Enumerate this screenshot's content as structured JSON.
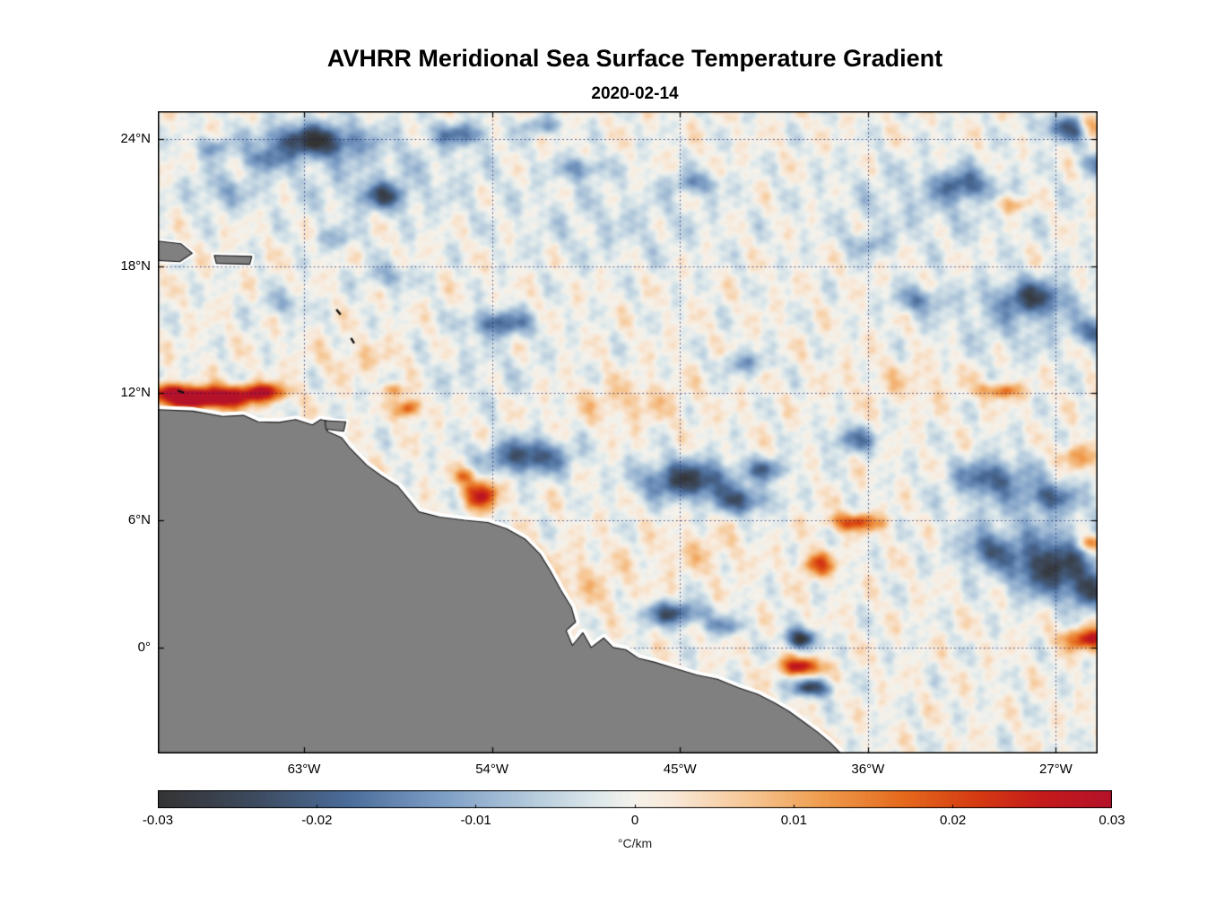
{
  "chart_data": {
    "type": "heatmap",
    "title": "AVHRR Meridional Sea Surface Temperature Gradient",
    "subtitle": "2020-02-14",
    "units": "°C/km",
    "lon_range": [
      -70,
      -25
    ],
    "lat_range": [
      -5,
      25.3
    ],
    "value_range": [
      -0.03,
      0.03
    ],
    "grid": "dotted",
    "legend_position": "bottom-colorbar",
    "xticks": [
      {
        "lon": -63,
        "label": "63°W"
      },
      {
        "lon": -54,
        "label": "54°W"
      },
      {
        "lon": -45,
        "label": "45°W"
      },
      {
        "lon": -36,
        "label": "36°W"
      },
      {
        "lon": -27,
        "label": "27°W"
      }
    ],
    "yticks": [
      {
        "lat": 24,
        "label": "24°N"
      },
      {
        "lat": 18,
        "label": "18°N"
      },
      {
        "lat": 12,
        "label": "12°N"
      },
      {
        "lat": 6,
        "label": "6°N"
      },
      {
        "lat": 0,
        "label": "0°"
      }
    ],
    "colorbar_ticks": [
      "-0.03",
      "-0.02",
      "-0.01",
      "0",
      "0.01",
      "0.02",
      "0.03"
    ],
    "colormap": [
      [
        0.0,
        "#343434"
      ],
      [
        0.1,
        "#3d4a5e"
      ],
      [
        0.2,
        "#4b6d9b"
      ],
      [
        0.3,
        "#7e9fc6"
      ],
      [
        0.4,
        "#b9cede"
      ],
      [
        0.46,
        "#dde8eb"
      ],
      [
        0.5,
        "#f5f3ec"
      ],
      [
        0.54,
        "#f8e8d8"
      ],
      [
        0.62,
        "#f6c693"
      ],
      [
        0.7,
        "#ef9a4b"
      ],
      [
        0.78,
        "#e56a1d"
      ],
      [
        0.86,
        "#d53a12"
      ],
      [
        0.93,
        "#c41a1c"
      ],
      [
        1.0,
        "#b5122a"
      ]
    ],
    "feature_format": "[lon_deg, lat_deg, sigma_lon_deg, sigma_lat_deg, amplitude_degC_per_km]",
    "features": [
      [
        -60,
        22.5,
        6,
        2.2,
        -0.005
      ],
      [
        -48,
        20,
        5,
        2,
        -0.004
      ],
      [
        -33,
        21,
        5,
        2,
        -0.005
      ],
      [
        -29,
        15.5,
        3.5,
        1.8,
        -0.006
      ],
      [
        -28.5,
        6.5,
        3.5,
        2.5,
        -0.006
      ],
      [
        -55,
        13,
        4,
        1.5,
        -0.003
      ],
      [
        -62.6,
        23.9,
        2.2,
        0.75,
        -0.026
      ],
      [
        -64.9,
        23.0,
        1.0,
        0.5,
        -0.012
      ],
      [
        -67.3,
        23.6,
        0.8,
        0.45,
        -0.012
      ],
      [
        -55.5,
        24.2,
        1.2,
        0.5,
        -0.016
      ],
      [
        -51.6,
        24.6,
        0.9,
        0.4,
        -0.012
      ],
      [
        -59.2,
        21.3,
        1.1,
        0.6,
        -0.019
      ],
      [
        -49.7,
        22.6,
        1.1,
        0.5,
        -0.013
      ],
      [
        -44.3,
        21.9,
        1.2,
        0.5,
        -0.012
      ],
      [
        -31.5,
        21.8,
        1.3,
        0.7,
        -0.017
      ],
      [
        -26.3,
        24.5,
        1.4,
        0.6,
        -0.02
      ],
      [
        -25.0,
        22.8,
        0.8,
        0.5,
        -0.014
      ],
      [
        -36.0,
        19.0,
        1.0,
        0.5,
        -0.009
      ],
      [
        -53.6,
        15.3,
        1.5,
        0.6,
        -0.019
      ],
      [
        -33.6,
        16.4,
        1.2,
        0.6,
        -0.013
      ],
      [
        -28.1,
        16.5,
        1.6,
        0.8,
        -0.02
      ],
      [
        -25.2,
        14.9,
        0.9,
        0.6,
        -0.016
      ],
      [
        -41.9,
        13.4,
        1.2,
        0.5,
        -0.011
      ],
      [
        -52.3,
        9.0,
        2.0,
        0.8,
        -0.023
      ],
      [
        -44.6,
        7.9,
        2.2,
        0.9,
        -0.026
      ],
      [
        -42.0,
        6.9,
        1.3,
        0.6,
        -0.019
      ],
      [
        -40.8,
        8.4,
        1.0,
        0.5,
        -0.016
      ],
      [
        -36.7,
        9.8,
        1.2,
        0.6,
        -0.015
      ],
      [
        -30.2,
        8.0,
        1.6,
        0.8,
        -0.017
      ],
      [
        -27.3,
        7.1,
        1.2,
        0.6,
        -0.015
      ],
      [
        -27.2,
        3.8,
        2.0,
        1.3,
        -0.026
      ],
      [
        -30.3,
        4.6,
        1.2,
        0.8,
        -0.015
      ],
      [
        -25.4,
        2.6,
        1.0,
        0.8,
        -0.02
      ],
      [
        -45.3,
        1.6,
        1.5,
        0.55,
        -0.022
      ],
      [
        -42.8,
        1.0,
        0.9,
        0.4,
        -0.013
      ],
      [
        -39.2,
        0.4,
        0.75,
        0.45,
        -0.028
      ],
      [
        -38.7,
        -1.9,
        0.9,
        0.4,
        -0.026
      ],
      [
        -59.0,
        17.5,
        1.3,
        0.6,
        -0.009
      ],
      [
        -64.0,
        16.2,
        1.2,
        0.6,
        -0.008
      ],
      [
        -67.0,
        21.5,
        1.5,
        0.8,
        -0.008
      ],
      [
        -61.5,
        19.3,
        1.0,
        0.5,
        -0.008
      ],
      [
        -68.6,
        11.75,
        1.3,
        0.45,
        0.03
      ],
      [
        -66.9,
        11.8,
        1.6,
        0.5,
        0.032
      ],
      [
        -64.9,
        12.05,
        1.1,
        0.4,
        0.026
      ],
      [
        -69.6,
        12.1,
        0.8,
        0.4,
        0.022
      ],
      [
        -58.0,
        11.3,
        0.6,
        0.45,
        0.022
      ],
      [
        -58.6,
        12.15,
        0.5,
        0.3,
        0.015
      ],
      [
        -54.5,
        7.2,
        0.8,
        0.65,
        0.026
      ],
      [
        -55.3,
        8.1,
        0.6,
        0.4,
        0.013
      ],
      [
        -36.6,
        5.9,
        1.3,
        0.4,
        0.021
      ],
      [
        -38.4,
        3.9,
        0.8,
        0.55,
        0.019
      ],
      [
        -39.2,
        -0.9,
        1.0,
        0.4,
        0.028
      ],
      [
        -25.4,
        0.4,
        1.2,
        0.5,
        0.026
      ],
      [
        -25.2,
        4.9,
        0.7,
        0.4,
        0.019
      ],
      [
        -29.6,
        12.1,
        1.0,
        0.35,
        0.017
      ],
      [
        -29.2,
        20.9,
        1.0,
        0.4,
        0.012
      ],
      [
        -25.3,
        24.6,
        0.6,
        0.5,
        0.02
      ],
      [
        -47.5,
        11.6,
        3.0,
        1.0,
        0.006
      ],
      [
        -50.0,
        3.0,
        3.0,
        1.5,
        0.005
      ],
      [
        -60.0,
        13.6,
        2.5,
        0.8,
        0.005
      ],
      [
        -34.0,
        12.5,
        3.0,
        1.0,
        0.004
      ],
      [
        -26.0,
        9.0,
        1.0,
        0.6,
        0.013
      ],
      [
        -44.0,
        4.5,
        2.0,
        1.0,
        0.005
      ]
    ],
    "land": {
      "fill": "#808080",
      "coast_halo": "#ffffff",
      "coast_line": "#1a1a1a",
      "mainland": [
        [
          -70.8,
          11.25
        ],
        [
          -68.3,
          11.15
        ],
        [
          -66.9,
          10.9
        ],
        [
          -65.9,
          10.95
        ],
        [
          -65.2,
          10.65
        ],
        [
          -64.2,
          10.62
        ],
        [
          -63.4,
          10.75
        ],
        [
          -62.6,
          10.5
        ],
        [
          -62.2,
          10.75
        ],
        [
          -61.7,
          10.65
        ],
        [
          -61.9,
          10.2
        ],
        [
          -61.2,
          9.9
        ],
        [
          -60.8,
          9.4
        ],
        [
          -60.0,
          8.6
        ],
        [
          -59.3,
          8.1
        ],
        [
          -58.5,
          7.6
        ],
        [
          -57.5,
          6.4
        ],
        [
          -56.5,
          6.15
        ],
        [
          -55.3,
          6.0
        ],
        [
          -54.2,
          5.9
        ],
        [
          -53.3,
          5.6
        ],
        [
          -52.4,
          5.1
        ],
        [
          -51.7,
          4.4
        ],
        [
          -51.2,
          3.6
        ],
        [
          -50.7,
          2.7
        ],
        [
          -50.2,
          1.9
        ],
        [
          -50.0,
          1.2
        ],
        [
          -50.45,
          0.8
        ],
        [
          -50.15,
          0.1
        ],
        [
          -49.65,
          0.7
        ],
        [
          -49.25,
          0.0
        ],
        [
          -48.65,
          0.45
        ],
        [
          -48.2,
          0.0
        ],
        [
          -47.6,
          -0.1
        ],
        [
          -47.0,
          -0.5
        ],
        [
          -46.2,
          -0.7
        ],
        [
          -45.2,
          -1.0
        ],
        [
          -44.2,
          -1.3
        ],
        [
          -43.2,
          -1.5
        ],
        [
          -42.2,
          -1.9
        ],
        [
          -41.3,
          -2.2
        ],
        [
          -40.5,
          -2.6
        ],
        [
          -39.8,
          -3.0
        ],
        [
          -39.1,
          -3.5
        ],
        [
          -38.4,
          -4.0
        ],
        [
          -37.8,
          -4.5
        ],
        [
          -37.2,
          -5.1
        ],
        [
          -37.0,
          -5.8
        ],
        [
          -71.0,
          -5.8
        ]
      ],
      "islands": [
        [
          [
            -70.7,
            19.25
          ],
          [
            -68.9,
            19.05
          ],
          [
            -68.35,
            18.6
          ],
          [
            -68.95,
            18.2
          ],
          [
            -70.7,
            18.3
          ]
        ],
        [
          [
            -67.3,
            18.5
          ],
          [
            -65.5,
            18.45
          ],
          [
            -65.6,
            18.08
          ],
          [
            -67.2,
            18.12
          ]
        ],
        [
          [
            -62.0,
            10.7
          ],
          [
            -61.0,
            10.65
          ],
          [
            -61.1,
            10.2
          ],
          [
            -61.95,
            10.3
          ]
        ]
      ],
      "islets": [
        [
          -61.45,
          15.95,
          -61.25,
          15.7
        ],
        [
          -60.75,
          14.6,
          -60.6,
          14.35
        ],
        [
          -69.05,
          12.12,
          -68.75,
          12.02
        ]
      ]
    }
  }
}
